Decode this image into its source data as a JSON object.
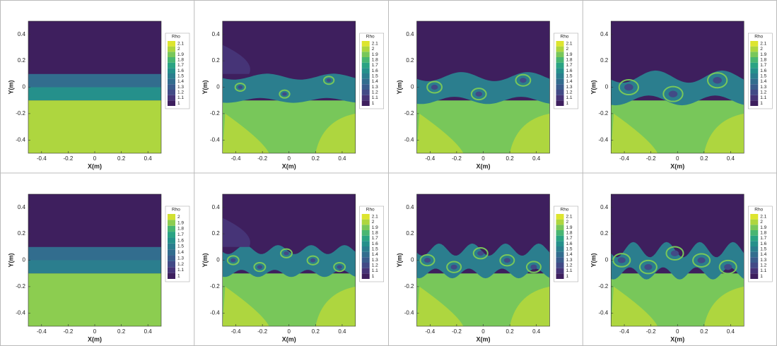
{
  "chart_data": [
    {
      "type": "contour",
      "xlabel": "X(m)",
      "ylabel": "Y(m)",
      "xlim": [
        -0.5,
        0.5
      ],
      "ylim": [
        -0.5,
        0.5
      ],
      "xticks": [
        -0.4,
        -0.2,
        0,
        0.2,
        0.4
      ],
      "yticks": [
        -0.4,
        -0.2,
        0,
        0.2,
        0.4
      ],
      "colorbar_title": "Rho",
      "levels": [
        1,
        1.1,
        1.2,
        1.3,
        1.4,
        1.5,
        1.6,
        1.7,
        1.8,
        1.9,
        2,
        2.1
      ],
      "colors": [
        "#3e1f5e",
        "#463477",
        "#424a86",
        "#3a5c8c",
        "#326d8e",
        "#2b7e8e",
        "#25908b",
        "#2aa383",
        "#48b672",
        "#78c75a",
        "#aed63f",
        "#dde52f"
      ]
    },
    {
      "type": "contour",
      "xlabel": "X(m)",
      "ylabel": "Y(m)",
      "xlim": [
        -0.5,
        0.5
      ],
      "ylim": [
        -0.5,
        0.5
      ],
      "xticks": [
        -0.4,
        -0.2,
        0,
        0.2,
        0.4
      ],
      "yticks": [
        -0.4,
        -0.2,
        0,
        0.2,
        0.4
      ],
      "colorbar_title": "Rho",
      "levels": [
        1,
        1.1,
        1.2,
        1.3,
        1.4,
        1.5,
        1.6,
        1.7,
        1.8,
        1.9,
        2,
        2.1
      ],
      "colors": [
        "#3e1f5e",
        "#463477",
        "#424a86",
        "#3a5c8c",
        "#326d8e",
        "#2b7e8e",
        "#25908b",
        "#2aa383",
        "#48b672",
        "#78c75a",
        "#aed63f",
        "#dde52f"
      ]
    },
    {
      "type": "contour",
      "xlabel": "X(m)",
      "ylabel": "Y(m)",
      "xlim": [
        -0.5,
        0.5
      ],
      "ylim": [
        -0.5,
        0.5
      ],
      "xticks": [
        -0.4,
        -0.2,
        0,
        0.2,
        0.4
      ],
      "yticks": [
        -0.4,
        -0.2,
        0,
        0.2,
        0.4
      ],
      "colorbar_title": "Rho",
      "levels": [
        1,
        1.1,
        1.2,
        1.3,
        1.4,
        1.5,
        1.6,
        1.7,
        1.8,
        1.9,
        2,
        2.1
      ],
      "colors": [
        "#3e1f5e",
        "#463477",
        "#424a86",
        "#3a5c8c",
        "#326d8e",
        "#2b7e8e",
        "#25908b",
        "#2aa383",
        "#48b672",
        "#78c75a",
        "#aed63f",
        "#dde52f"
      ]
    },
    {
      "type": "contour",
      "xlabel": "X(m)",
      "ylabel": "Y(m)",
      "xlim": [
        -0.5,
        0.5
      ],
      "ylim": [
        -0.5,
        0.5
      ],
      "xticks": [
        -0.4,
        -0.2,
        0,
        0.2,
        0.4
      ],
      "yticks": [
        -0.4,
        -0.2,
        0,
        0.2,
        0.4
      ],
      "colorbar_title": "Rho",
      "levels": [
        1,
        1.1,
        1.2,
        1.3,
        1.4,
        1.5,
        1.6,
        1.7,
        1.8,
        1.9,
        2,
        2.1
      ],
      "colors": [
        "#3e1f5e",
        "#463477",
        "#424a86",
        "#3a5c8c",
        "#326d8e",
        "#2b7e8e",
        "#25908b",
        "#2aa383",
        "#48b672",
        "#78c75a",
        "#aed63f",
        "#dde52f"
      ]
    },
    {
      "type": "contour",
      "xlabel": "X(m)",
      "ylabel": "Y(m)",
      "xlim": [
        -0.5,
        0.5
      ],
      "ylim": [
        -0.5,
        0.5
      ],
      "xticks": [
        -0.4,
        -0.2,
        0,
        0.2,
        0.4
      ],
      "yticks": [
        -0.4,
        -0.2,
        0,
        0.2,
        0.4
      ],
      "colorbar_title": "Rho",
      "levels": [
        1,
        1.1,
        1.2,
        1.3,
        1.4,
        1.5,
        1.6,
        1.7,
        1.8,
        1.9,
        2
      ],
      "colors": [
        "#3e1f5e",
        "#463477",
        "#424a86",
        "#3a5c8c",
        "#326d8e",
        "#2b7e8e",
        "#25908b",
        "#2aa383",
        "#48b672",
        "#8ccd50",
        "#d0e032"
      ]
    },
    {
      "type": "contour",
      "xlabel": "X(m)",
      "ylabel": "Y(m)",
      "xlim": [
        -0.5,
        0.5
      ],
      "ylim": [
        -0.5,
        0.5
      ],
      "xticks": [
        -0.4,
        -0.2,
        0,
        0.2,
        0.4
      ],
      "yticks": [
        -0.4,
        -0.2,
        0,
        0.2,
        0.4
      ],
      "colorbar_title": "Rho",
      "levels": [
        1,
        1.1,
        1.2,
        1.3,
        1.4,
        1.5,
        1.6,
        1.7,
        1.8,
        1.9,
        2,
        2.1
      ],
      "colors": [
        "#3e1f5e",
        "#463477",
        "#424a86",
        "#3a5c8c",
        "#326d8e",
        "#2b7e8e",
        "#25908b",
        "#2aa383",
        "#48b672",
        "#78c75a",
        "#aed63f",
        "#dde52f"
      ]
    },
    {
      "type": "contour",
      "xlabel": "X(m)",
      "ylabel": "Y(m)",
      "xlim": [
        -0.5,
        0.5
      ],
      "ylim": [
        -0.5,
        0.5
      ],
      "xticks": [
        -0.4,
        -0.2,
        0,
        0.2,
        0.4
      ],
      "yticks": [
        -0.4,
        -0.2,
        0,
        0.2,
        0.4
      ],
      "colorbar_title": "Rho",
      "levels": [
        1,
        1.1,
        1.2,
        1.3,
        1.4,
        1.5,
        1.6,
        1.7,
        1.8,
        1.9,
        2,
        2.1
      ],
      "colors": [
        "#3e1f5e",
        "#463477",
        "#424a86",
        "#3a5c8c",
        "#326d8e",
        "#2b7e8e",
        "#25908b",
        "#2aa383",
        "#48b672",
        "#78c75a",
        "#aed63f",
        "#dde52f"
      ]
    },
    {
      "type": "contour",
      "xlabel": "X(m)",
      "ylabel": "Y(m)",
      "xlim": [
        -0.5,
        0.5
      ],
      "ylim": [
        -0.5,
        0.5
      ],
      "xticks": [
        -0.4,
        -0.2,
        0,
        0.2,
        0.4
      ],
      "yticks": [
        -0.4,
        -0.2,
        0,
        0.2,
        0.4
      ],
      "colorbar_title": "Rho",
      "levels": [
        1,
        1.1,
        1.2,
        1.3,
        1.4,
        1.5,
        1.6,
        1.7,
        1.8,
        1.9,
        2,
        2.1
      ],
      "colors": [
        "#3e1f5e",
        "#463477",
        "#424a86",
        "#3a5c8c",
        "#326d8e",
        "#2b7e8e",
        "#25908b",
        "#2aa383",
        "#48b672",
        "#78c75a",
        "#aed63f",
        "#dde52f"
      ]
    }
  ]
}
